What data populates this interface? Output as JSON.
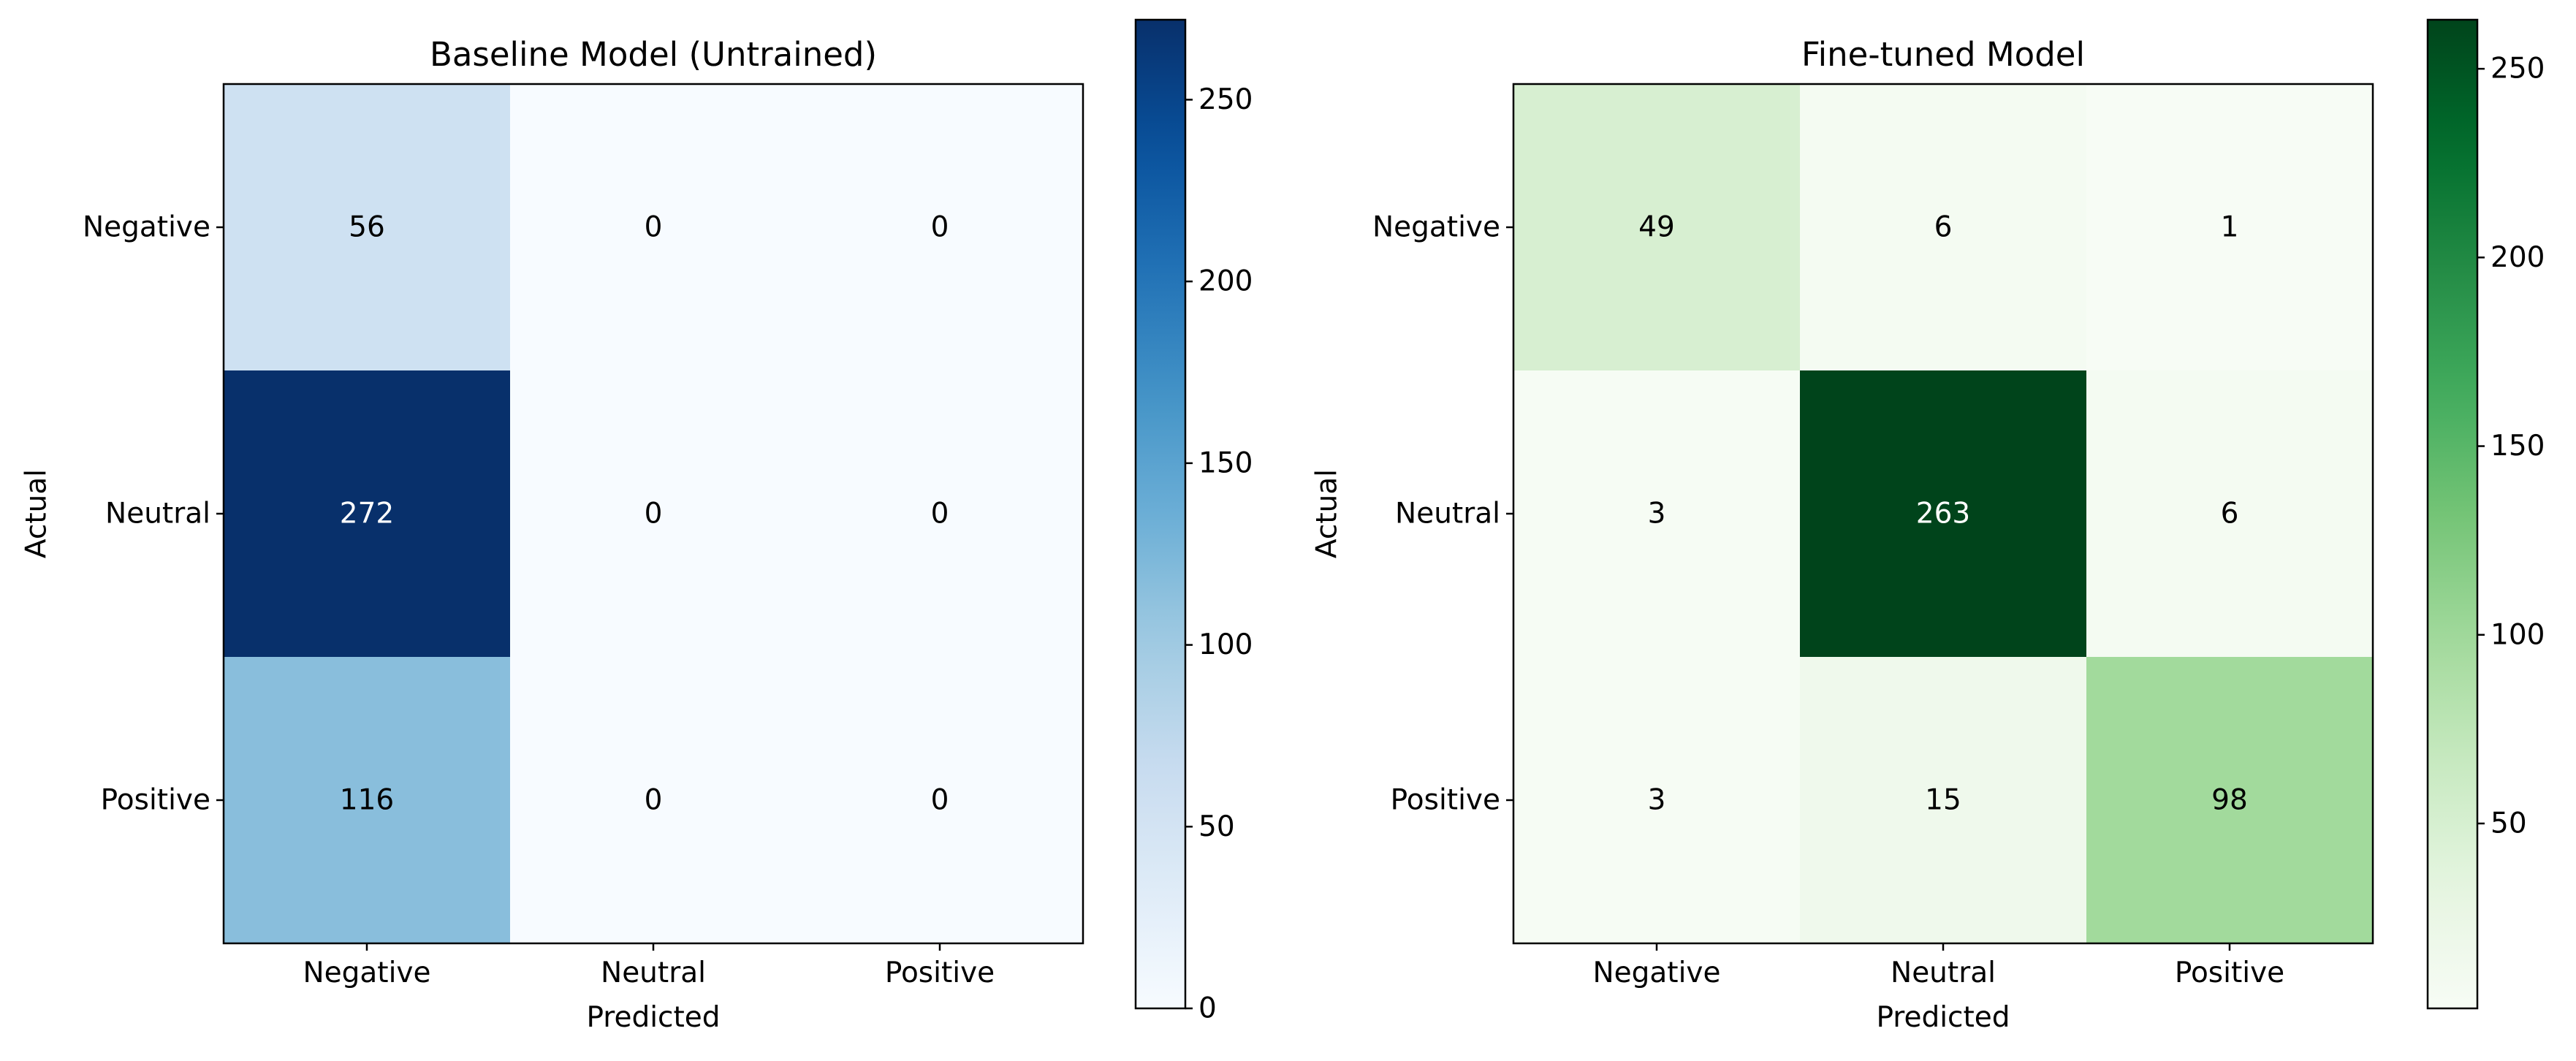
{
  "chart_data": [
    {
      "type": "heatmap",
      "title": "Baseline Model (Untrained)",
      "xlabel": "Predicted",
      "ylabel": "Actual",
      "x_categories": [
        "Negative",
        "Neutral",
        "Positive"
      ],
      "y_categories": [
        "Negative",
        "Neutral",
        "Positive"
      ],
      "values": [
        [
          56,
          0,
          0
        ],
        [
          272,
          0,
          0
        ],
        [
          116,
          0,
          0
        ]
      ],
      "colormap": "Blues",
      "colorbar": {
        "min": 0,
        "max": 272,
        "ticks": [
          0,
          50,
          100,
          150,
          200,
          250
        ]
      }
    },
    {
      "type": "heatmap",
      "title": "Fine-tuned Model",
      "xlabel": "Predicted",
      "ylabel": "Actual",
      "x_categories": [
        "Negative",
        "Neutral",
        "Positive"
      ],
      "y_categories": [
        "Negative",
        "Neutral",
        "Positive"
      ],
      "values": [
        [
          49,
          6,
          1
        ],
        [
          3,
          263,
          6
        ],
        [
          3,
          15,
          98
        ]
      ],
      "colormap": "Greens",
      "colorbar": {
        "min": 1,
        "max": 263,
        "ticks": [
          50,
          100,
          150,
          200,
          250
        ]
      }
    }
  ]
}
